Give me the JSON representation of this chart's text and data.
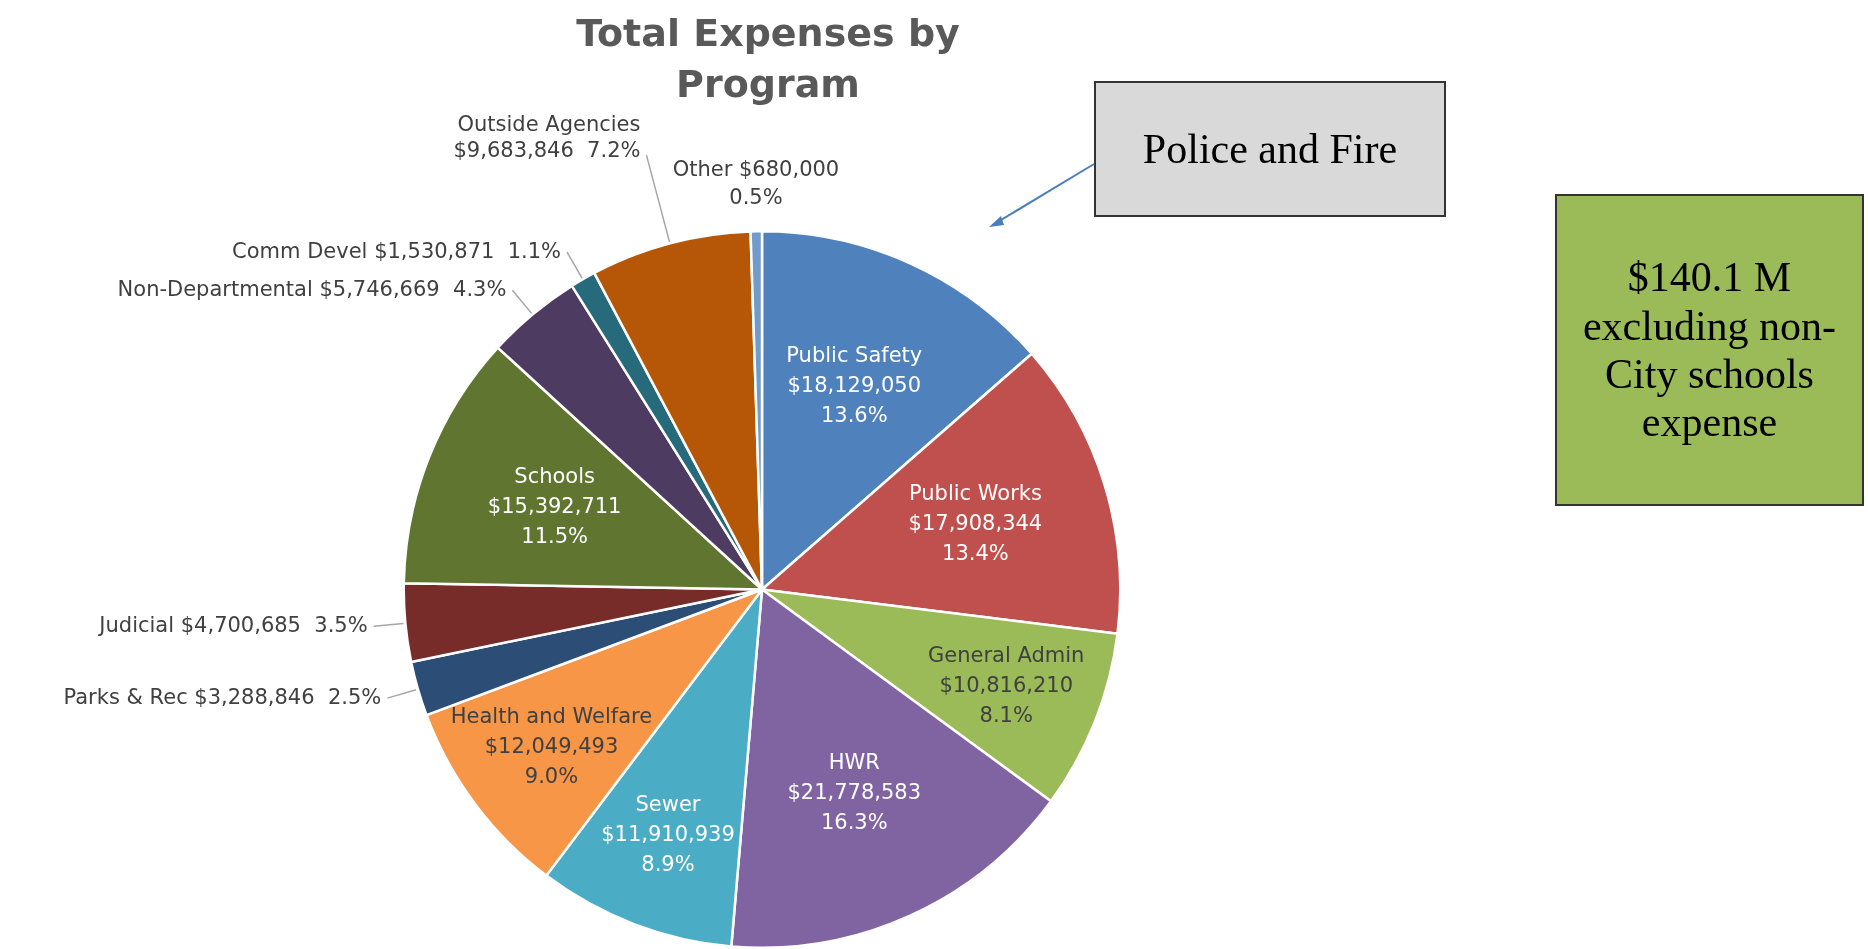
{
  "chart_data": {
    "type": "pie",
    "title": "Total Expenses by Program",
    "categories": [
      "Public Safety",
      "Public Works",
      "General Admin",
      "HWR",
      "Sewer",
      "Health and Welfare",
      "Parks & Rec",
      "Judicial",
      "Schools",
      "Non-Departmental",
      "Comm Devel",
      "Outside Agencies",
      "Other"
    ],
    "values": [
      18129050,
      17908344,
      10816210,
      21778583,
      11910939,
      12049493,
      3288846,
      4700685,
      15392711,
      5746669,
      1530871,
      9683846,
      680000
    ],
    "value_labels": [
      "$18,129,050 13.6%",
      "$17,908,344 13.4%",
      "$10,816,210 8.1%",
      "$21,778,583 16.3%",
      "$11,910,939 8.9%",
      "$12,049,493 9.0%",
      "$3,288,846 2.5%",
      "$4,700,685 3.5%",
      "$15,392,711 11.5%",
      "$5,746,669 4.3%",
      "$1,530,871 1.1%",
      "$9,683,846 7.2%",
      "$680,000 0.5%"
    ],
    "colors": [
      "#4f81bd",
      "#c0504d",
      "#9bbb59",
      "#8064a2",
      "#4bacc6",
      "#f79646",
      "#2c4d75",
      "#772c2a",
      "#5f7530",
      "#4d3b62",
      "#276a7c",
      "#b65708",
      "#729aca"
    ],
    "annotations": [
      "Police and Fire",
      "$140.1 M excluding non-City schools expense"
    ],
    "legend": false
  }
}
